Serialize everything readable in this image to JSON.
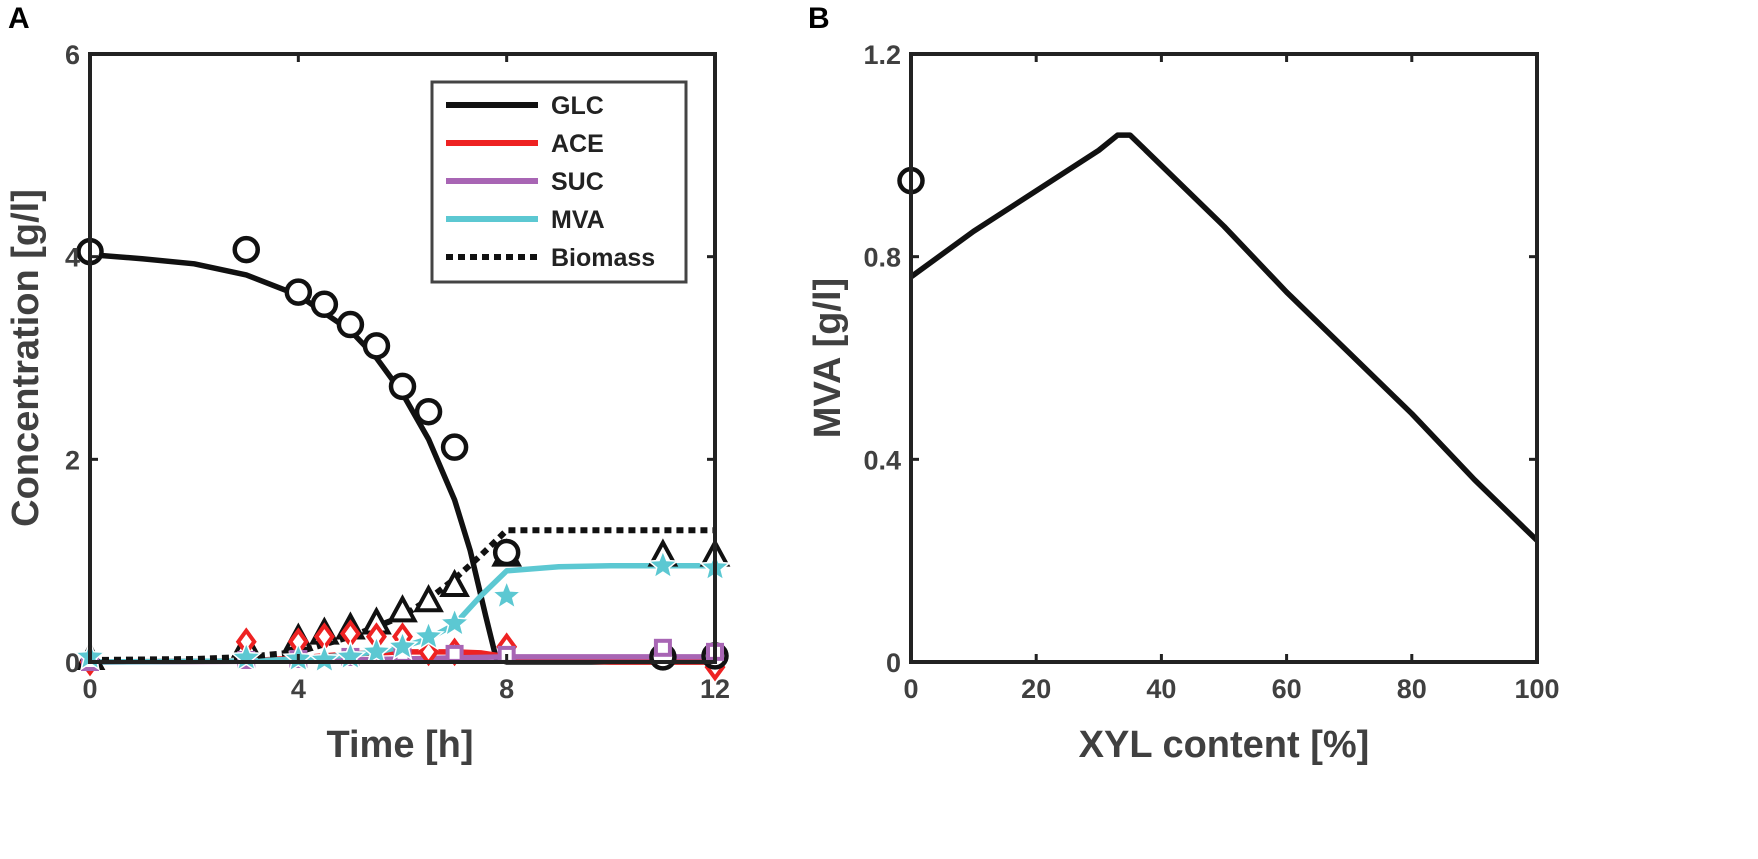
{
  "chart_data": [
    {
      "panel": "A",
      "type": "line",
      "xlabel": "Time [h]",
      "ylabel": "Concentration [g/l]",
      "xlim": [
        0,
        12
      ],
      "ylim": [
        0,
        6
      ],
      "xticks": [
        "0",
        "4",
        "8",
        "12"
      ],
      "yticks": [
        "0",
        "2",
        "4",
        "6"
      ],
      "legend_position": "top-right",
      "series": [
        {
          "name": "GLC",
          "color": "#111111",
          "style": "solid",
          "x": [
            0,
            1,
            2,
            3,
            4,
            5,
            5.5,
            6,
            6.5,
            7,
            7.3,
            7.6,
            7.8,
            8,
            9,
            10,
            11,
            12
          ],
          "y": [
            4.02,
            3.98,
            3.93,
            3.82,
            3.62,
            3.27,
            3.0,
            2.65,
            2.2,
            1.6,
            1.1,
            0.45,
            0.03,
            0.0,
            0.0,
            0.0,
            0.0,
            0.0
          ],
          "markers": {
            "shape": "circle",
            "x": [
              0,
              3,
              4,
              4.5,
              5,
              5.5,
              6,
              6.5,
              7,
              8,
              11,
              12
            ],
            "y": [
              4.05,
              4.07,
              3.65,
              3.53,
              3.33,
              3.12,
              2.72,
              2.47,
              2.12,
              1.08,
              0.05,
              0.06
            ]
          }
        },
        {
          "name": "ACE",
          "color": "#ee2222",
          "style": "solid",
          "x": [
            0,
            3,
            4,
            5,
            6,
            7,
            7.5,
            8,
            9,
            10,
            12
          ],
          "y": [
            0,
            0.01,
            0.04,
            0.08,
            0.1,
            0.1,
            0.09,
            0.05,
            0.02,
            0.0,
            0.0
          ],
          "markers": {
            "shape": "diamond",
            "x": [
              0,
              3,
              4,
              4.5,
              5,
              5.5,
              6,
              6.5,
              7,
              8,
              12
            ],
            "y": [
              0.0,
              0.2,
              0.2,
              0.25,
              0.28,
              0.25,
              0.25,
              0.1,
              0.1,
              0.15,
              -0.05
            ]
          }
        },
        {
          "name": "SUC",
          "color": "#a865b4",
          "style": "solid",
          "x": [
            0,
            4,
            5,
            6,
            7,
            8,
            12
          ],
          "y": [
            0,
            0.01,
            0.02,
            0.03,
            0.04,
            0.05,
            0.05
          ],
          "markers": {
            "shape": "square",
            "x": [
              0,
              3,
              4,
              5,
              6,
              7,
              8,
              11,
              12
            ],
            "y": [
              0.0,
              0.02,
              0.03,
              0.05,
              0.08,
              0.08,
              0.07,
              0.14,
              0.1
            ]
          }
        },
        {
          "name": "MVA",
          "color": "#5cc8d2",
          "style": "solid",
          "x": [
            0,
            3,
            4,
            5,
            5.5,
            6,
            6.5,
            7,
            7.5,
            8,
            9,
            10,
            11,
            12
          ],
          "y": [
            0,
            0.01,
            0.03,
            0.07,
            0.1,
            0.15,
            0.23,
            0.37,
            0.65,
            0.9,
            0.94,
            0.95,
            0.95,
            0.95
          ],
          "markers": {
            "shape": "star",
            "x": [
              0,
              3,
              4,
              4.5,
              5,
              5.5,
              6,
              6.5,
              7,
              8,
              11,
              12
            ],
            "y": [
              0.05,
              0.04,
              0.03,
              0.02,
              0.05,
              0.1,
              0.15,
              0.25,
              0.38,
              0.65,
              0.95,
              0.93
            ]
          }
        },
        {
          "name": "Biomass",
          "color": "#111111",
          "style": "dotted",
          "x": [
            0,
            2,
            3,
            4,
            5,
            6,
            6.5,
            7,
            7.5,
            8,
            10,
            12
          ],
          "y": [
            0.02,
            0.03,
            0.05,
            0.1,
            0.25,
            0.45,
            0.62,
            0.82,
            1.05,
            1.3,
            1.3,
            1.3
          ],
          "markers": {
            "shape": "triangle",
            "x": [
              0,
              3,
              4,
              4.5,
              5,
              5.5,
              6,
              6.5,
              7,
              8,
              11,
              12
            ],
            "y": [
              0.03,
              0.15,
              0.22,
              0.28,
              0.33,
              0.38,
              0.5,
              0.6,
              0.75,
              1.05,
              1.05,
              1.05
            ]
          }
        }
      ]
    },
    {
      "panel": "B",
      "type": "line",
      "xlabel": "XYL content [%]",
      "ylabel": "MVA [g/l]",
      "xlim": [
        0,
        100
      ],
      "ylim": [
        0,
        1.2
      ],
      "xticks": [
        "0",
        "20",
        "40",
        "60",
        "80",
        "100"
      ],
      "yticks": [
        "0",
        "0.4",
        "0.8",
        "1.2"
      ],
      "series": [
        {
          "name": "MVA",
          "color": "#111111",
          "style": "solid",
          "x": [
            0,
            10,
            20,
            30,
            33,
            35,
            40,
            50,
            60,
            70,
            80,
            90,
            100
          ],
          "y": [
            0.76,
            0.85,
            0.93,
            1.01,
            1.04,
            1.04,
            0.98,
            0.86,
            0.73,
            0.61,
            0.49,
            0.36,
            0.24
          ],
          "markers": {
            "shape": "circle",
            "x": [
              0
            ],
            "y": [
              0.95
            ]
          }
        }
      ]
    }
  ]
}
